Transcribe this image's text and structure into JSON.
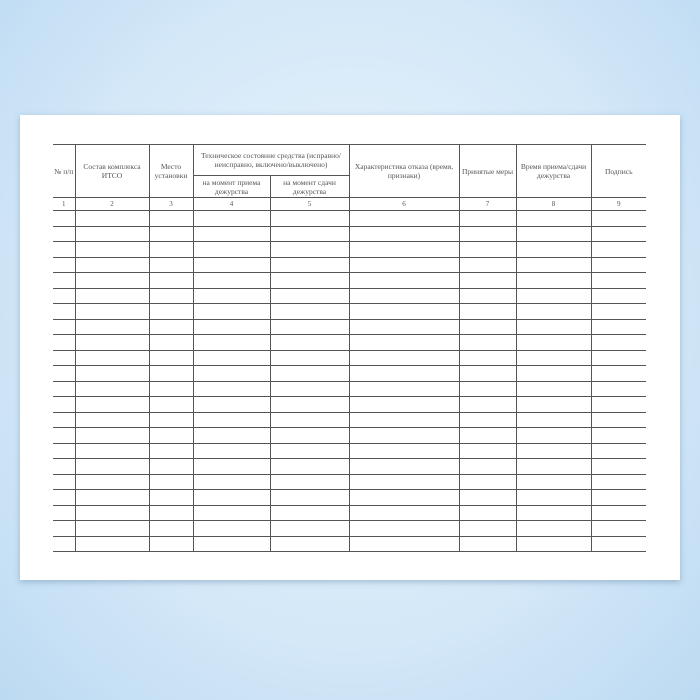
{
  "form": {
    "headers": {
      "col1": "№ п/п",
      "col2": "Состав комплекса ИТСО",
      "col3": "Место установки",
      "group": "Техническое состояние средства (исправно/неисправно, включено/выключено)",
      "col4": "на момент приема дежурства",
      "col5": "на момент сдачи дежурства",
      "col6": "Характеристика отказа (время, признаки)",
      "col7": "Принятые меры",
      "col8": "Время приема/сдачи дежурства",
      "col9": "Подпись"
    },
    "column_numbers": [
      "1",
      "2",
      "3",
      "4",
      "5",
      "6",
      "7",
      "8",
      "9"
    ],
    "empty_rows": 22
  }
}
